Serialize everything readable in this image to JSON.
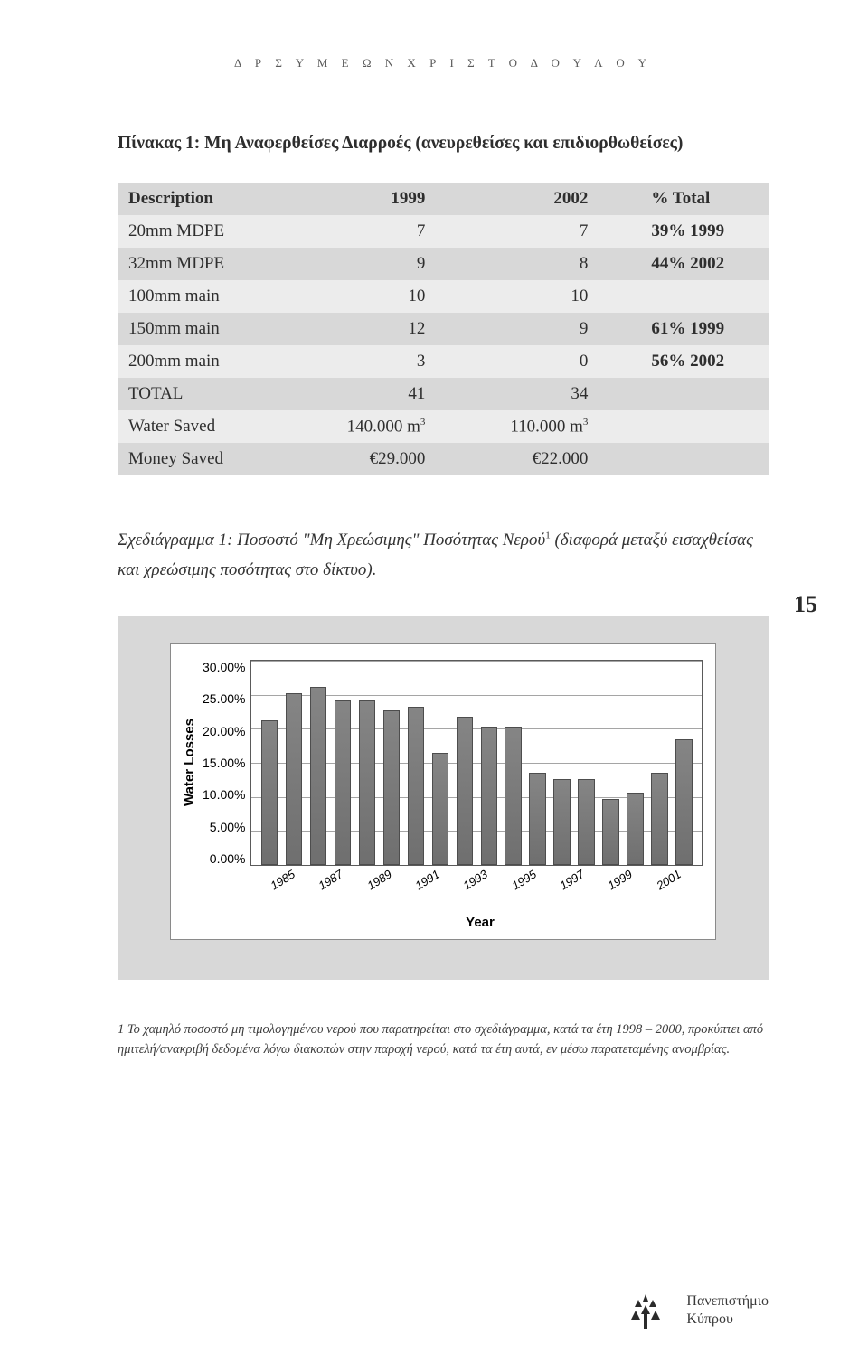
{
  "header": "Δ Ρ   Σ Υ Μ Ε Ω Ν   Χ Ρ Ι Σ Τ Ο Δ Ο Υ Λ Ο Υ",
  "table_title": "Πίνακας 1: Μη Αναφερθείσες Διαρροές (ανευρεθείσες και επιδιορθωθείσες)",
  "table": {
    "head": [
      "Description",
      "1999",
      "2002",
      "% Total"
    ],
    "rows": [
      [
        "20mm MDPE",
        "7",
        "7",
        "39% 1999"
      ],
      [
        "32mm MDPE",
        "9",
        "8",
        "44% 2002"
      ],
      [
        "100mm main",
        "10",
        "10",
        ""
      ],
      [
        "150mm main",
        "12",
        "9",
        "61% 1999"
      ],
      [
        "200mm main",
        "3",
        "0",
        "56% 2002"
      ],
      [
        "TOTAL",
        "41",
        "34",
        ""
      ],
      [
        "Water Saved",
        "140.000 m",
        "110.000 m",
        ""
      ],
      [
        "Money Saved",
        "€29.000",
        "€22.000",
        ""
      ]
    ],
    "sup_rows": [
      6
    ]
  },
  "caption_pre": "Σχεδιάγραμμα 1: Ποσοστό \"Μη Χρεώσιμης\" Ποσότητας Νερού",
  "caption_sup": "1",
  "caption_post": " (διαφορά μεταξύ εισαχθείσας και χρεώσιμης ποσότητας στο δίκτυο).",
  "page_number": "15",
  "chart": {
    "type": "bar",
    "ylabel": "Water Losses",
    "xlabel": "Year",
    "ymax": 31,
    "yticks": [
      "30.00%",
      "25.00%",
      "20.00%",
      "15.00%",
      "10.00%",
      "5.00%",
      "0.00%"
    ],
    "grid_positions_pct": [
      0,
      16.67,
      33.33,
      50,
      66.67,
      83.33
    ],
    "categories": [
      "1985",
      "1986",
      "1987",
      "1988",
      "1989",
      "1990",
      "1991",
      "1992",
      "1993",
      "1994",
      "1995",
      "1996",
      "1997",
      "1998",
      "1999",
      "2000",
      "2001",
      "2002"
    ],
    "show_labels": [
      "1985",
      "",
      "1987",
      "",
      "1989",
      "",
      "1991",
      "",
      "1993",
      "",
      "1995",
      "",
      "1997",
      "",
      "1999",
      "",
      "2001",
      ""
    ],
    "values": [
      22,
      26,
      27,
      25,
      25,
      23.5,
      24,
      17,
      22.5,
      21,
      21,
      14,
      13,
      13,
      10,
      11,
      14,
      19
    ],
    "bar_color": "#858585",
    "bar_border": "#4d4d4d",
    "grid_color": "#a5a5a5",
    "plot_border": "#5a5a5a",
    "background": "#ffffff",
    "outer_background": "#d8d8d8"
  },
  "footnote": "1 Το χαμηλό ποσοστό μη τιμολογημένου νερού που παρατηρείται στο σχεδιάγραμμα, κατά τα έτη 1998 – 2000, προκύπτει από ημιτελή/ανακριβή δεδομένα λόγω διακοπών στην παροχή νερού, κατά τα έτη αυτά, εν μέσω παρατεταμένης ανομβρίας.",
  "footer": {
    "line1": "Πανεπιστήμιο",
    "line2": "Κύπρου"
  }
}
